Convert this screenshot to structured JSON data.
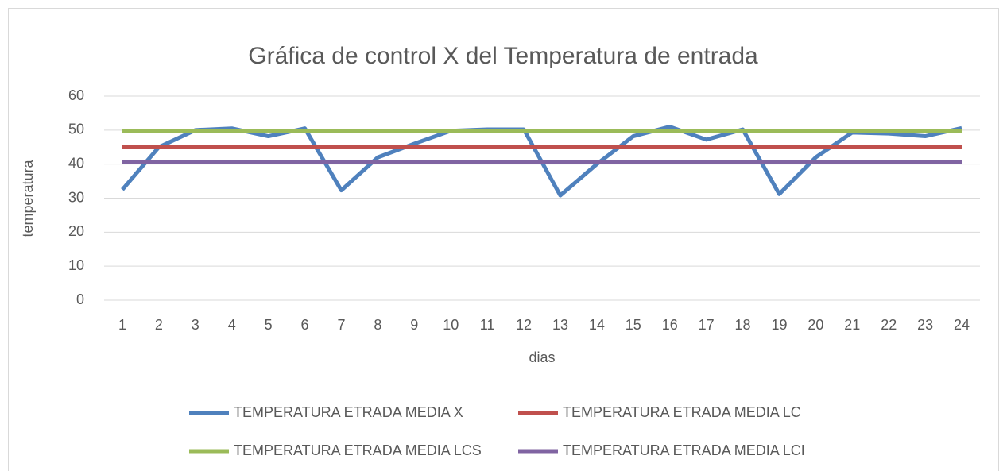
{
  "chart_data": {
    "type": "line",
    "title": "Gráfica de control  X del Temperatura de entrada",
    "x_label": "dias",
    "y_label": "temperatura",
    "categories": [
      1,
      2,
      3,
      4,
      5,
      6,
      7,
      8,
      9,
      10,
      11,
      12,
      13,
      14,
      15,
      16,
      17,
      18,
      19,
      20,
      21,
      22,
      23,
      24
    ],
    "series": [
      {
        "name": "TEMPERATURA ETRADA MEDIA X",
        "color": "#4f81bd",
        "values": [
          32.5,
          45,
          50,
          50.5,
          48.2,
          50.5,
          32.3,
          42,
          46,
          49.8,
          50.2,
          50.2,
          30.8,
          40,
          48.2,
          51,
          47.2,
          50.2,
          31.2,
          42,
          49.3,
          49,
          48.2,
          50.6
        ]
      },
      {
        "name": "TEMPERATURA ETRADA MEDIA LC",
        "color": "#c0504d",
        "values": [
          45.1,
          45.1,
          45.1,
          45.1,
          45.1,
          45.1,
          45.1,
          45.1,
          45.1,
          45.1,
          45.1,
          45.1,
          45.1,
          45.1,
          45.1,
          45.1,
          45.1,
          45.1,
          45.1,
          45.1,
          45.1,
          45.1,
          45.1,
          45.1
        ]
      },
      {
        "name": "TEMPERATURA ETRADA MEDIA LCS",
        "color": "#9bbb59",
        "values": [
          49.8,
          49.8,
          49.8,
          49.8,
          49.8,
          49.8,
          49.8,
          49.8,
          49.8,
          49.8,
          49.8,
          49.8,
          49.8,
          49.8,
          49.8,
          49.8,
          49.8,
          49.8,
          49.8,
          49.8,
          49.8,
          49.8,
          49.8,
          49.8
        ]
      },
      {
        "name": "TEMPERATURA ETRADA MEDIA LCI",
        "color": "#8064a2",
        "values": [
          40.5,
          40.5,
          40.5,
          40.5,
          40.5,
          40.5,
          40.5,
          40.5,
          40.5,
          40.5,
          40.5,
          40.5,
          40.5,
          40.5,
          40.5,
          40.5,
          40.5,
          40.5,
          40.5,
          40.5,
          40.5,
          40.5,
          40.5,
          40.5
        ]
      }
    ],
    "ylim": [
      0,
      60
    ],
    "yticks": [
      0,
      10,
      20,
      30,
      40,
      50,
      60
    ],
    "grid": true,
    "legend": "bottom"
  }
}
